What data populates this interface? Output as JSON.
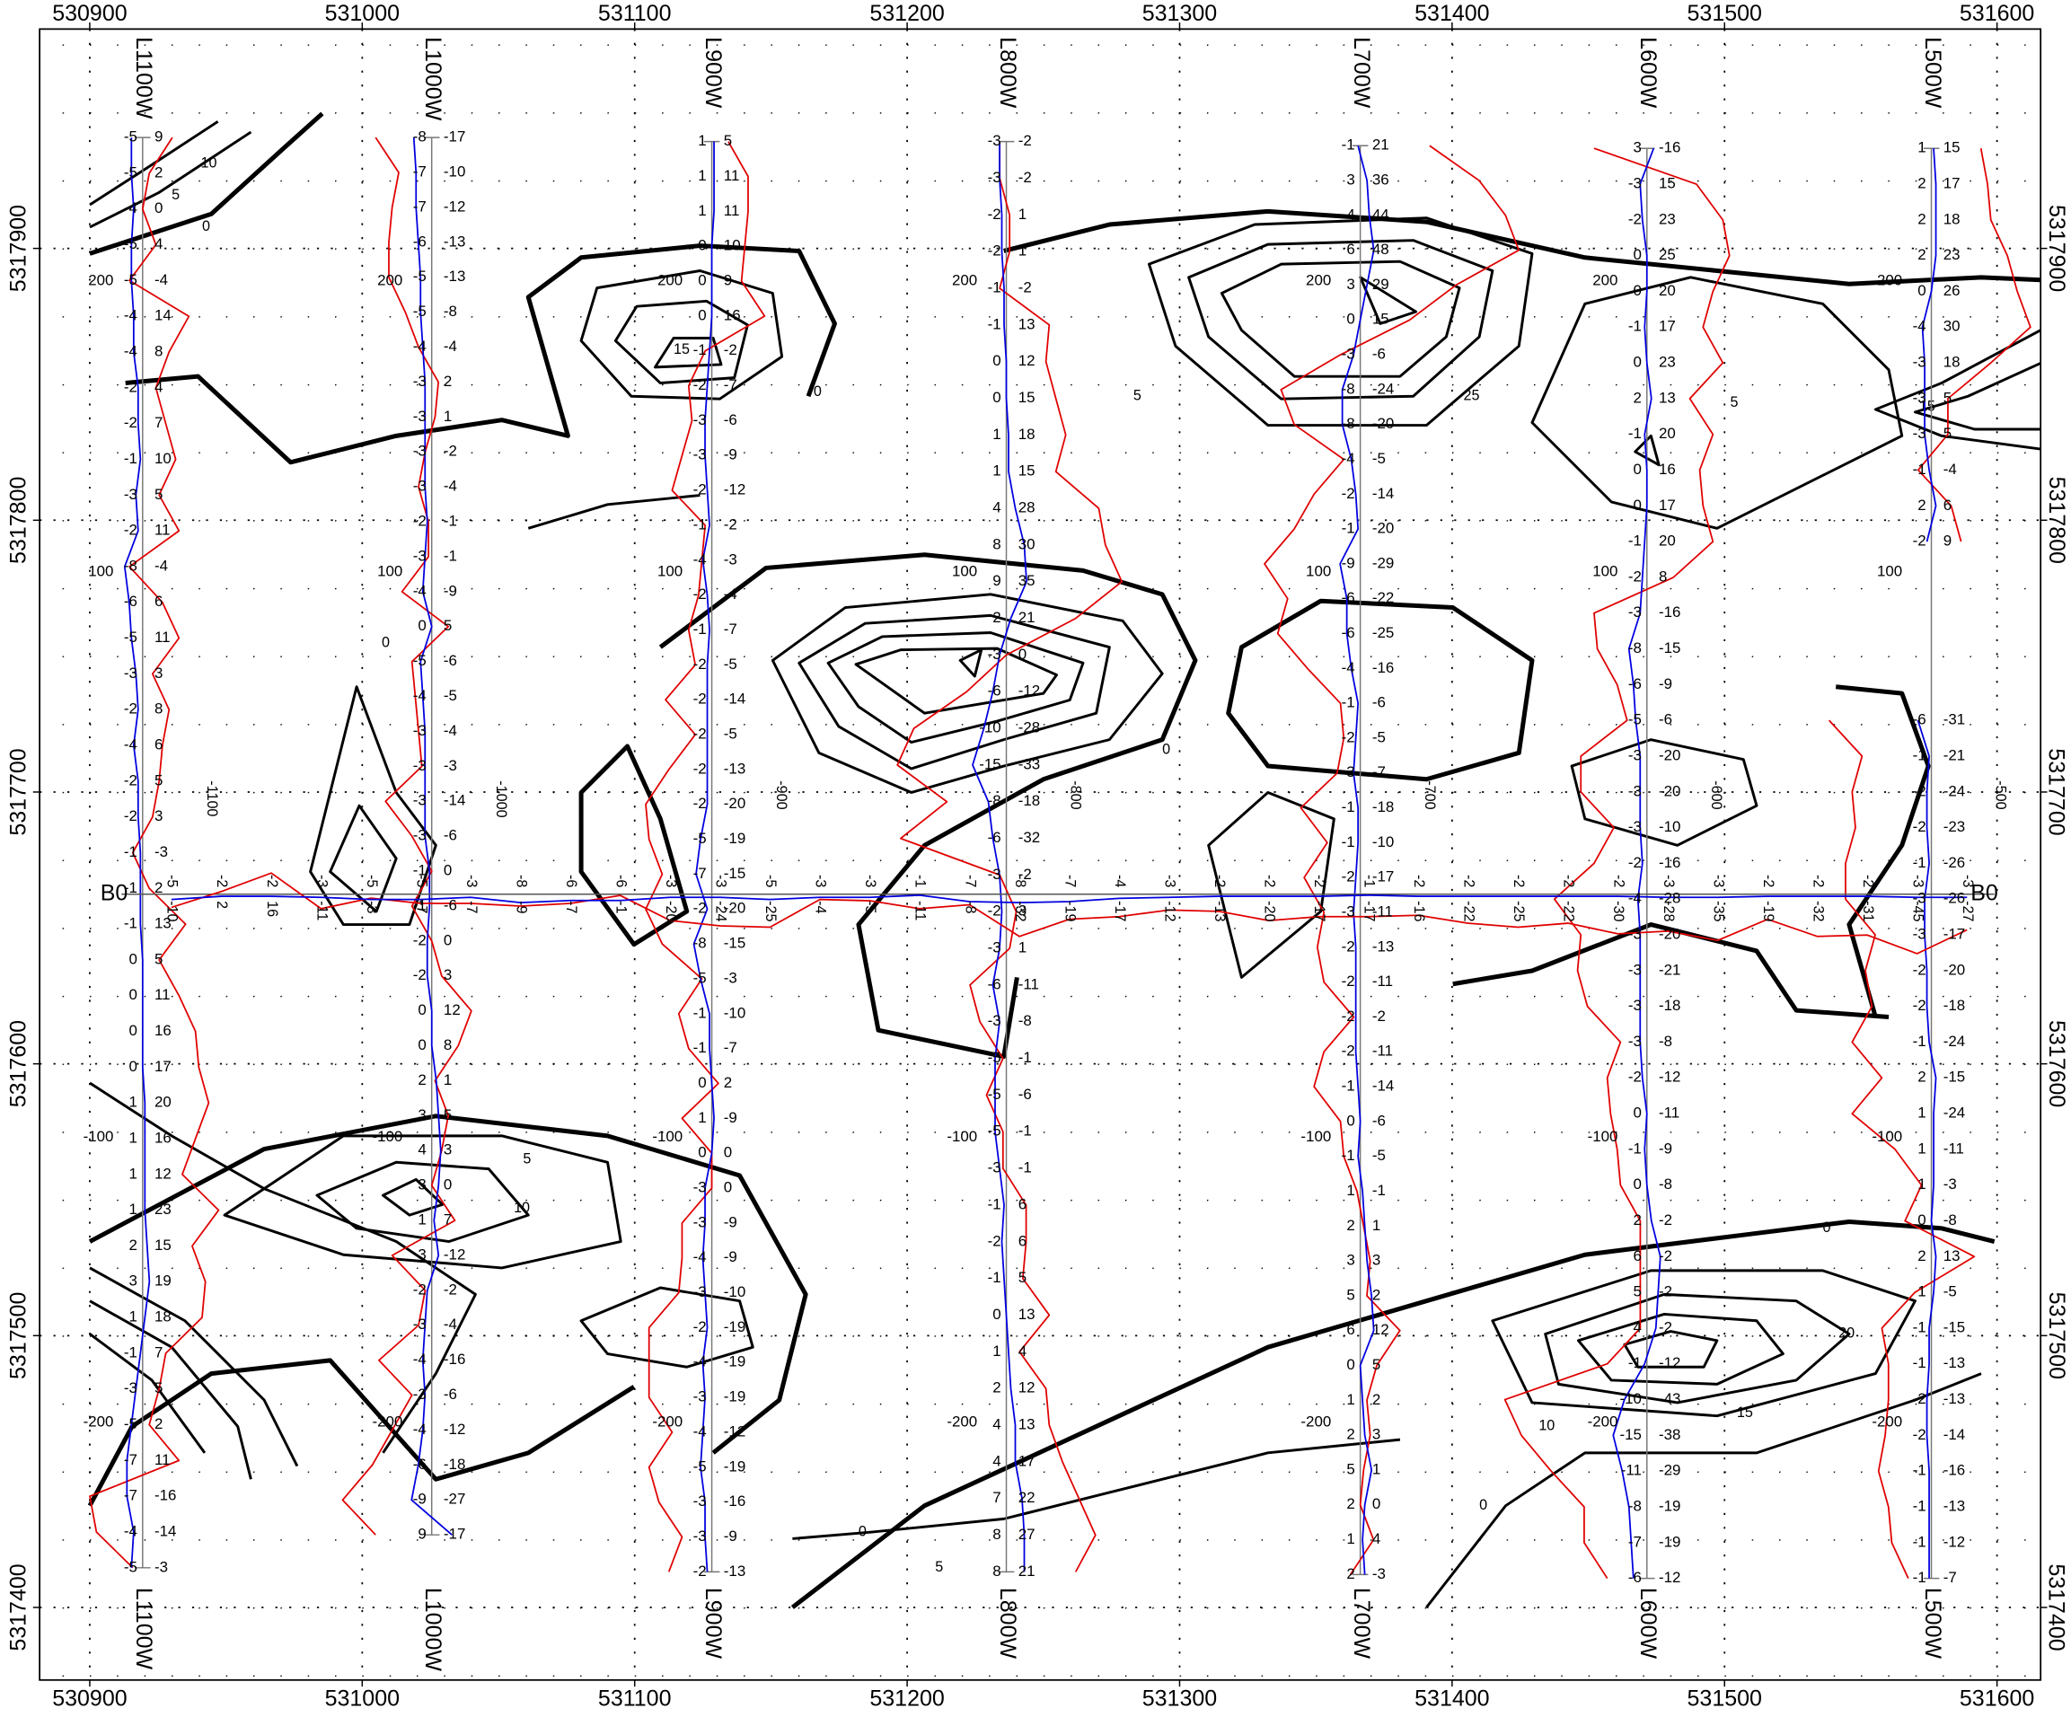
{
  "map": {
    "xlim": [
      530881.6,
      531616
    ],
    "ylim": [
      5317373.3,
      5317980.7
    ],
    "xticks": [
      530900,
      531000,
      531100,
      531200,
      531300,
      531400,
      531500,
      531600
    ],
    "yticks": [
      5317400,
      5317500,
      5317600,
      5317700,
      5317800,
      5317900
    ],
    "grid": true,
    "lines": [
      {
        "name": "L1100W",
        "easting": 530919.4,
        "north_range": [
          5317940.8,
          5317414.6
        ],
        "station_label": -1100,
        "inphase": [
          -5,
          -5,
          -4,
          -5,
          -5,
          -4,
          -4,
          -2,
          -2,
          -1,
          -3,
          -2,
          -8,
          -6,
          -5,
          -3,
          -2,
          -4,
          -2,
          -2,
          -1,
          -1,
          -1,
          0,
          0,
          0,
          0,
          1,
          1,
          1,
          1,
          2,
          3,
          1,
          -1,
          -3,
          -5,
          -7,
          -7,
          -4,
          -5
        ],
        "quadrature": [
          9,
          2,
          0,
          4,
          -4,
          14,
          8,
          4,
          7,
          10,
          5,
          11,
          -4,
          6,
          11,
          3,
          8,
          6,
          5,
          3,
          -3,
          2,
          13,
          5,
          11,
          16,
          17,
          20,
          16,
          12,
          23,
          15,
          19,
          18,
          7,
          5,
          2,
          11,
          -16,
          -14,
          -3
        ]
      },
      {
        "name": "L1000W",
        "easting": 531025.5,
        "north_range": [
          5317940.8,
          5317426.7
        ],
        "station_label": -1000,
        "inphase": [
          -8,
          -7,
          -7,
          -6,
          -5,
          -5,
          -4,
          -3,
          -3,
          -3,
          -3,
          -2,
          -3,
          -4,
          0,
          -5,
          -4,
          -3,
          -3,
          -3,
          -3,
          -1,
          -1,
          -2,
          -2,
          0,
          0,
          2,
          3,
          4,
          3,
          1,
          3,
          -2,
          -3,
          -4,
          -3,
          -4,
          -6,
          -9,
          9
        ],
        "quadrature": [
          -17,
          -10,
          -12,
          -13,
          -13,
          -8,
          -4,
          2,
          1,
          -2,
          -4,
          -1,
          -1,
          -9,
          5,
          -6,
          -5,
          -4,
          -3,
          -14,
          -6,
          0,
          -6,
          0,
          3,
          12,
          8,
          1,
          5,
          3,
          0,
          7,
          -12,
          -2,
          -4,
          -16,
          -6,
          -12,
          -18,
          -27,
          -17
        ]
      },
      {
        "name": "L900W",
        "easting": 531128.3,
        "north_range": [
          5317939.3,
          5317413.1
        ],
        "station_label": -900,
        "inphase": [
          1,
          1,
          1,
          0,
          0,
          0,
          -1,
          -2,
          -3,
          -3,
          -2,
          -1,
          -4,
          -2,
          -1,
          -2,
          -2,
          -2,
          -2,
          -2,
          -5,
          -7,
          -2,
          -8,
          -5,
          -1,
          -1,
          0,
          1,
          0,
          -3,
          -3,
          -4,
          -3,
          -2,
          -4,
          -3,
          -4,
          -5,
          -3,
          -3,
          -2
        ],
        "quadrature": [
          5,
          11,
          11,
          10,
          9,
          16,
          -2,
          -7,
          -6,
          -9,
          -12,
          -2,
          -3,
          -4,
          -7,
          -5,
          -14,
          -5,
          -13,
          -20,
          -19,
          -15,
          -20,
          -15,
          -3,
          -10,
          -7,
          2,
          -9,
          0,
          0,
          -9,
          -9,
          -10,
          -19,
          -19,
          -19,
          -12,
          -19,
          -16,
          -9,
          -13
        ]
      },
      {
        "name": "L800W",
        "easting": 531236.4,
        "north_range": [
          5317939.3,
          5317413.1
        ],
        "station_label": -800,
        "inphase": [
          -3,
          -3,
          -2,
          -2,
          -1,
          -1,
          0,
          0,
          1,
          1,
          4,
          8,
          9,
          2,
          -3,
          -6,
          -10,
          -15,
          -8,
          -6,
          -3,
          -2,
          -3,
          -6,
          -3,
          -5,
          -5,
          -5,
          -3,
          -1,
          -2,
          -1,
          0,
          1,
          2,
          4,
          4,
          7,
          8,
          8
        ],
        "quadrature": [
          -2,
          -2,
          1,
          1,
          -2,
          13,
          12,
          15,
          18,
          15,
          28,
          30,
          35,
          21,
          0,
          -12,
          -28,
          -33,
          -18,
          -32,
          -2,
          3,
          1,
          -11,
          -8,
          -1,
          -6,
          -1,
          -1,
          6,
          6,
          5,
          13,
          4,
          12,
          13,
          17,
          22,
          27,
          21
        ]
      },
      {
        "name": "L700W",
        "easting": 531366.3,
        "north_range": [
          5317937.8,
          5317412.1
        ],
        "station_label": -700,
        "inphase": [
          -1,
          3,
          4,
          6,
          3,
          0,
          -3,
          -8,
          -8,
          -4,
          -2,
          -1,
          -9,
          -6,
          -6,
          -4,
          -1,
          -2,
          -3,
          -1,
          -1,
          -2,
          -3,
          -2,
          -2,
          -2,
          -2,
          -1,
          0,
          -1,
          1,
          2,
          3,
          5,
          6,
          0,
          1,
          2,
          5,
          2,
          1,
          2
        ],
        "quadrature": [
          21,
          36,
          44,
          48,
          29,
          15,
          -6,
          -24,
          -20,
          -5,
          -14,
          -20,
          -29,
          -22,
          -25,
          -16,
          -6,
          -5,
          -7,
          -18,
          -10,
          -17,
          -11,
          -13,
          -11,
          -2,
          -11,
          -14,
          -6,
          -5,
          -1,
          1,
          3,
          2,
          12,
          5,
          2,
          3,
          1,
          0,
          4,
          -3
        ]
      },
      {
        "name": "L600W",
        "easting": 531471.5,
        "north_range": [
          5317936.8,
          5317410.7
        ],
        "station_label": -600,
        "inphase": [
          3,
          -3,
          -2,
          0,
          0,
          -1,
          0,
          2,
          -1,
          0,
          0,
          -1,
          -2,
          -3,
          -8,
          -6,
          -5,
          -3,
          -3,
          -3,
          -2,
          -4,
          -3,
          -3,
          -3,
          -3,
          -2,
          0,
          -1,
          0,
          2,
          6,
          5,
          4,
          -1,
          -10,
          -15,
          -11,
          -8,
          -7,
          -6
        ],
        "quadrature": [
          -16,
          15,
          23,
          25,
          20,
          17,
          23,
          13,
          20,
          16,
          17,
          20,
          8,
          -16,
          -15,
          -9,
          -6,
          -20,
          -20,
          -10,
          -16,
          -28,
          -20,
          -21,
          -18,
          -8,
          -12,
          -11,
          -9,
          -8,
          -2,
          -2,
          -2,
          -2,
          -12,
          -43,
          -38,
          -29,
          -19,
          -19,
          -12
        ]
      },
      {
        "name": "L500W",
        "easting": 531575.9,
        "north_range": [
          5317936.8,
          5317410.7
        ],
        "station_label": -500,
        "inphase": [
          1,
          2,
          2,
          2,
          0,
          -4,
          -3,
          -3,
          -3,
          -1,
          2,
          -2,
          null,
          null,
          null,
          null,
          -6,
          -1,
          -2,
          -2,
          -1,
          -3,
          -3,
          -2,
          -2,
          -1,
          2,
          1,
          1,
          1,
          0,
          2,
          1,
          -1,
          -1,
          -2,
          -2,
          -1,
          -1,
          -1,
          -1
        ],
        "quadrature": [
          15,
          17,
          18,
          23,
          26,
          30,
          18,
          5,
          5,
          -4,
          6,
          9,
          null,
          null,
          null,
          null,
          -31,
          -21,
          -24,
          -23,
          -26,
          -26,
          -17,
          -20,
          -18,
          -24,
          -15,
          -24,
          -11,
          -3,
          -8,
          13,
          -5,
          -15,
          -13,
          -13,
          -14,
          -16,
          -13,
          -12,
          -7
        ]
      }
    ],
    "baseline": {
      "name": "B0",
      "northing": 5317662.4,
      "east_range": [
        530930,
        531589
      ],
      "inphase": [
        -5,
        -2,
        -2,
        -3,
        -5,
        -5,
        -3,
        -8,
        -6,
        -6,
        -3,
        -3,
        -5,
        -3,
        -3,
        -1,
        -7,
        -8,
        -7,
        -4,
        -3,
        -2,
        -2,
        -2,
        -1,
        -2,
        -2,
        -2,
        -2,
        -2,
        -3,
        -3,
        -2,
        -2,
        -2,
        -3,
        -3
      ],
      "quadrature": [
        -10,
        2,
        16,
        -11,
        -3,
        -7,
        -7,
        -9,
        -7,
        -1,
        -20,
        -24,
        -25,
        -4,
        -5,
        -11,
        -8,
        -32,
        -19,
        -17,
        -12,
        -13,
        -20,
        -17,
        -17,
        -16,
        -22,
        -25,
        -22,
        -30,
        -28,
        -35,
        -19,
        -32,
        -31,
        -45,
        -27
      ]
    },
    "profile_scale": [
      {
        "value": 200,
        "northing": 5317888
      },
      {
        "value": 100,
        "northing": 5317781
      },
      {
        "value": -100,
        "northing": 5317573
      },
      {
        "value": -200,
        "northing": 5317468
      }
    ],
    "contour_labels": [
      10,
      5,
      0,
      0,
      0,
      15,
      5,
      0,
      25,
      5,
      10,
      15,
      0,
      5,
      0,
      10,
      15,
      20,
      0,
      5
    ]
  }
}
